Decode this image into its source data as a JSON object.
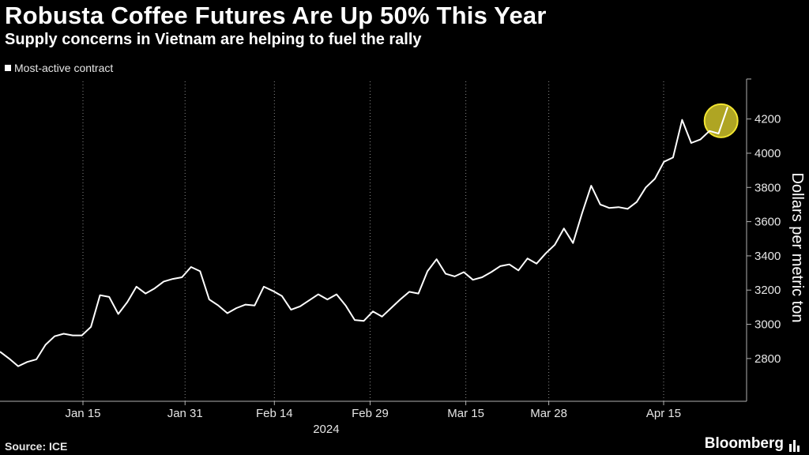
{
  "header": {
    "title": "Robusta Coffee Futures Are Up 50% This Year",
    "subtitle": "Supply concerns in Vietnam are helping to fuel the rally"
  },
  "legend": {
    "label": "Most-active contract"
  },
  "footer": {
    "source": "Source: ICE",
    "brand": "Bloomberg"
  },
  "colors": {
    "background": "#000000",
    "line": "#ffffff",
    "grid": "#8a8a8a",
    "highlight": "#f2e531"
  },
  "chart_data": {
    "type": "line",
    "title": "Robusta Coffee Futures Are Up 50% This Year",
    "subtitle": "Supply concerns in Vietnam are helping to fuel the rally",
    "ylabel": "Dollars per metric ton",
    "xlabel": "",
    "year_label": "2024",
    "ylim": [
      2550,
      4420
    ],
    "yticks": [
      2800,
      3000,
      3200,
      3400,
      3600,
      3800,
      4000,
      4200
    ],
    "x_tick_labels": [
      "Jan 15",
      "Jan 31",
      "Feb 14",
      "Feb 29",
      "Mar 15",
      "Mar 28",
      "Apr 15"
    ],
    "x_tick_dates": [
      "2024-01-15",
      "2024-01-31",
      "2024-02-14",
      "2024-02-29",
      "2024-03-15",
      "2024-03-28",
      "2024-04-15"
    ],
    "xlim": [
      "2024-01-02",
      "2024-04-28"
    ],
    "grid": "vertical",
    "legend_position": "top-left",
    "highlight": {
      "shape": "circle",
      "date": "2024-04-24",
      "value": 4190
    },
    "series": [
      {
        "name": "Most-active contract",
        "points": [
          [
            "2024-01-02",
            2840
          ],
          [
            "2024-01-03",
            2800
          ],
          [
            "2024-01-04",
            2755
          ],
          [
            "2024-01-05",
            2780
          ],
          [
            "2024-01-06",
            2795
          ],
          [
            "2024-01-07",
            2880
          ],
          [
            "2024-01-08",
            2930
          ],
          [
            "2024-01-09",
            2945
          ],
          [
            "2024-01-10",
            2935
          ],
          [
            "2024-01-11",
            2935
          ],
          [
            "2024-01-12",
            2985
          ],
          [
            "2024-01-13",
            3170
          ],
          [
            "2024-01-14",
            3160
          ],
          [
            "2024-01-15",
            3060
          ],
          [
            "2024-01-16",
            3130
          ],
          [
            "2024-01-17",
            3220
          ],
          [
            "2024-01-18",
            3180
          ],
          [
            "2024-01-19",
            3210
          ],
          [
            "2024-01-20",
            3250
          ],
          [
            "2024-01-21",
            3265
          ],
          [
            "2024-01-22",
            3275
          ],
          [
            "2024-01-23",
            3335
          ],
          [
            "2024-01-24",
            3310
          ],
          [
            "2024-01-25",
            3145
          ],
          [
            "2024-01-26",
            3110
          ],
          [
            "2024-01-27",
            3065
          ],
          [
            "2024-01-28",
            3095
          ],
          [
            "2024-01-29",
            3115
          ],
          [
            "2024-01-30",
            3110
          ],
          [
            "2024-01-31",
            3220
          ],
          [
            "2024-02-01",
            3195
          ],
          [
            "2024-02-02",
            3165
          ],
          [
            "2024-02-03",
            3085
          ],
          [
            "2024-02-04",
            3105
          ],
          [
            "2024-02-05",
            3140
          ],
          [
            "2024-02-06",
            3175
          ],
          [
            "2024-02-07",
            3145
          ],
          [
            "2024-02-08",
            3175
          ],
          [
            "2024-02-09",
            3110
          ],
          [
            "2024-02-10",
            3025
          ],
          [
            "2024-02-11",
            3020
          ],
          [
            "2024-02-12",
            3075
          ],
          [
            "2024-02-13",
            3045
          ],
          [
            "2024-02-14",
            3095
          ],
          [
            "2024-02-15",
            3145
          ],
          [
            "2024-02-16",
            3190
          ],
          [
            "2024-02-17",
            3180
          ],
          [
            "2024-02-18",
            3310
          ],
          [
            "2024-02-19",
            3380
          ],
          [
            "2024-02-20",
            3295
          ],
          [
            "2024-02-21",
            3280
          ],
          [
            "2024-02-22",
            3305
          ],
          [
            "2024-02-23",
            3260
          ],
          [
            "2024-02-24",
            3275
          ],
          [
            "2024-02-25",
            3305
          ],
          [
            "2024-02-26",
            3340
          ],
          [
            "2024-02-27",
            3350
          ],
          [
            "2024-02-28",
            3315
          ],
          [
            "2024-02-29",
            3385
          ],
          [
            "2024-03-01",
            3355
          ],
          [
            "2024-03-02",
            3415
          ],
          [
            "2024-03-03",
            3465
          ],
          [
            "2024-03-04",
            3560
          ],
          [
            "2024-03-05",
            3475
          ],
          [
            "2024-03-06",
            3650
          ],
          [
            "2024-03-07",
            3810
          ],
          [
            "2024-03-08",
            3700
          ],
          [
            "2024-03-09",
            3680
          ],
          [
            "2024-03-10",
            3685
          ],
          [
            "2024-03-11",
            3675
          ],
          [
            "2024-03-12",
            3715
          ],
          [
            "2024-03-13",
            3800
          ],
          [
            "2024-03-14",
            3850
          ],
          [
            "2024-03-15",
            3950
          ],
          [
            "2024-03-16",
            3975
          ],
          [
            "2024-03-17",
            4195
          ],
          [
            "2024-03-18",
            4060
          ],
          [
            "2024-03-19",
            4080
          ],
          [
            "2024-03-20",
            4130
          ],
          [
            "2024-03-21",
            4115
          ],
          [
            "2024-03-22",
            4270
          ]
        ]
      }
    ]
  }
}
